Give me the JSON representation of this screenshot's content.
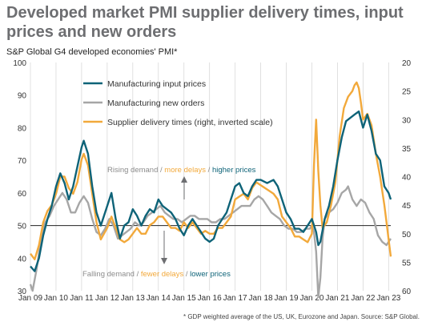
{
  "title": "Developed market PMI supplier delivery times, input prices and new orders",
  "subtitle": "S&P Global G4 developed economies' PMI*",
  "footnote": "* GDP weighted average of the US, UK, Eurozone and Japan. Source: S&P Global.",
  "colors": {
    "input": "#0e6378",
    "orders": "#a6a6a6",
    "delivery": "#f2a93b",
    "grid": "#d9d9d9",
    "ref": "#222222"
  },
  "annotations": {
    "rising": {
      "a": "Rising demand / ",
      "b": "more delays",
      "c": " / ",
      "d": "higher prices"
    },
    "falling": {
      "a": "Falling demand / ",
      "b": "fewer delays",
      "c": " / ",
      "d": "lower prices"
    }
  },
  "chart_data": {
    "type": "line",
    "x_range": [
      "2009-01",
      "2023-02"
    ],
    "x_ticks": [
      "Jan 09",
      "Jan 10",
      "Jan 11",
      "Jan 12",
      "Jan 13",
      "Jan 14",
      "Jan 15",
      "Jan 16",
      "Jan 17",
      "Jan 18",
      "Jan 19",
      "Jan 20",
      "Jan 21",
      "Jan 22",
      "Jan 23"
    ],
    "y_left": {
      "min": 30,
      "max": 100,
      "ticks": [
        30,
        40,
        50,
        60,
        70,
        80,
        90,
        100
      ]
    },
    "y_right": {
      "min": 20,
      "max": 60,
      "inverted": true,
      "ticks": [
        20,
        25,
        30,
        35,
        40,
        45,
        50,
        55,
        60
      ]
    },
    "reference_line": 50,
    "grid": "vertical",
    "legend_position": "top-left",
    "series": [
      {
        "name": "Manufacturing input prices",
        "axis": "left",
        "color": "#0e6378",
        "points": [
          [
            "2009-01",
            37.5
          ],
          [
            "2009-03",
            36
          ],
          [
            "2009-05",
            40
          ],
          [
            "2009-07",
            47
          ],
          [
            "2009-09",
            52
          ],
          [
            "2009-11",
            56
          ],
          [
            "2010-01",
            62
          ],
          [
            "2010-03",
            66
          ],
          [
            "2010-05",
            63
          ],
          [
            "2010-07",
            58
          ],
          [
            "2010-09",
            62
          ],
          [
            "2010-11",
            68
          ],
          [
            "2011-01",
            74
          ],
          [
            "2011-02",
            76
          ],
          [
            "2011-04",
            72
          ],
          [
            "2011-06",
            62
          ],
          [
            "2011-08",
            54
          ],
          [
            "2011-10",
            50
          ],
          [
            "2012-01",
            56
          ],
          [
            "2012-03",
            60
          ],
          [
            "2012-05",
            52
          ],
          [
            "2012-07",
            46
          ],
          [
            "2012-09",
            50
          ],
          [
            "2012-11",
            51
          ],
          [
            "2013-01",
            55
          ],
          [
            "2013-03",
            53
          ],
          [
            "2013-05",
            50
          ],
          [
            "2013-07",
            53
          ],
          [
            "2013-09",
            55
          ],
          [
            "2013-11",
            54
          ],
          [
            "2014-01",
            58
          ],
          [
            "2014-03",
            56
          ],
          [
            "2014-05",
            55
          ],
          [
            "2014-07",
            54
          ],
          [
            "2014-09",
            52
          ],
          [
            "2014-11",
            49
          ],
          [
            "2015-01",
            47
          ],
          [
            "2015-03",
            50
          ],
          [
            "2015-05",
            52
          ],
          [
            "2015-07",
            50
          ],
          [
            "2015-09",
            48
          ],
          [
            "2015-11",
            46
          ],
          [
            "2016-01",
            45
          ],
          [
            "2016-03",
            46
          ],
          [
            "2016-05",
            50
          ],
          [
            "2016-07",
            52
          ],
          [
            "2016-09",
            54
          ],
          [
            "2016-11",
            58
          ],
          [
            "2017-01",
            62
          ],
          [
            "2017-03",
            63
          ],
          [
            "2017-05",
            60
          ],
          [
            "2017-07",
            59
          ],
          [
            "2017-09",
            62
          ],
          [
            "2017-11",
            64
          ],
          [
            "2018-01",
            64
          ],
          [
            "2018-04",
            63
          ],
          [
            "2018-07",
            64
          ],
          [
            "2018-09",
            62
          ],
          [
            "2018-11",
            58
          ],
          [
            "2019-01",
            54
          ],
          [
            "2019-03",
            52
          ],
          [
            "2019-05",
            49
          ],
          [
            "2019-07",
            49
          ],
          [
            "2019-09",
            48
          ],
          [
            "2019-11",
            50
          ],
          [
            "2020-01",
            52
          ],
          [
            "2020-03",
            48
          ],
          [
            "2020-04",
            44
          ],
          [
            "2020-05",
            45
          ],
          [
            "2020-07",
            52
          ],
          [
            "2020-09",
            56
          ],
          [
            "2020-11",
            62
          ],
          [
            "2021-01",
            70
          ],
          [
            "2021-03",
            77
          ],
          [
            "2021-05",
            82
          ],
          [
            "2021-07",
            83
          ],
          [
            "2021-09",
            84
          ],
          [
            "2021-11",
            85
          ],
          [
            "2022-01",
            80
          ],
          [
            "2022-03",
            84
          ],
          [
            "2022-05",
            79
          ],
          [
            "2022-07",
            72
          ],
          [
            "2022-09",
            70
          ],
          [
            "2022-11",
            62
          ],
          [
            "2023-01",
            60
          ],
          [
            "2023-02",
            58
          ]
        ]
      },
      {
        "name": "Manufacturing new orders",
        "axis": "left",
        "color": "#a6a6a6",
        "points": [
          [
            "2009-01",
            32
          ],
          [
            "2009-02",
            30
          ],
          [
            "2009-04",
            37
          ],
          [
            "2009-06",
            46
          ],
          [
            "2009-08",
            51
          ],
          [
            "2009-10",
            53
          ],
          [
            "2009-12",
            56
          ],
          [
            "2010-02",
            58
          ],
          [
            "2010-04",
            60
          ],
          [
            "2010-06",
            58
          ],
          [
            "2010-08",
            54
          ],
          [
            "2010-10",
            54
          ],
          [
            "2010-12",
            57
          ],
          [
            "2011-02",
            59
          ],
          [
            "2011-04",
            57
          ],
          [
            "2011-06",
            52
          ],
          [
            "2011-08",
            48
          ],
          [
            "2011-10",
            47
          ],
          [
            "2011-12",
            49
          ],
          [
            "2012-02",
            52
          ],
          [
            "2012-04",
            50
          ],
          [
            "2012-06",
            46
          ],
          [
            "2012-08",
            47
          ],
          [
            "2012-10",
            48
          ],
          [
            "2012-12",
            49
          ],
          [
            "2013-02",
            51
          ],
          [
            "2013-04",
            50
          ],
          [
            "2013-06",
            51
          ],
          [
            "2013-08",
            53
          ],
          [
            "2013-10",
            54
          ],
          [
            "2013-12",
            55
          ],
          [
            "2014-02",
            56
          ],
          [
            "2014-04",
            54
          ],
          [
            "2014-06",
            53
          ],
          [
            "2014-08",
            52
          ],
          [
            "2014-10",
            52
          ],
          [
            "2014-12",
            51
          ],
          [
            "2015-02",
            52
          ],
          [
            "2015-04",
            53
          ],
          [
            "2015-06",
            53
          ],
          [
            "2015-08",
            52
          ],
          [
            "2015-10",
            52
          ],
          [
            "2015-12",
            52
          ],
          [
            "2016-02",
            51
          ],
          [
            "2016-04",
            51
          ],
          [
            "2016-06",
            52
          ],
          [
            "2016-08",
            52
          ],
          [
            "2016-10",
            53
          ],
          [
            "2016-12",
            54
          ],
          [
            "2017-02",
            55
          ],
          [
            "2017-04",
            56
          ],
          [
            "2017-06",
            56
          ],
          [
            "2017-08",
            56
          ],
          [
            "2017-10",
            58
          ],
          [
            "2017-12",
            59
          ],
          [
            "2018-02",
            58
          ],
          [
            "2018-04",
            56
          ],
          [
            "2018-06",
            54
          ],
          [
            "2018-08",
            53
          ],
          [
            "2018-10",
            52
          ],
          [
            "2018-12",
            50
          ],
          [
            "2019-02",
            49
          ],
          [
            "2019-04",
            49
          ],
          [
            "2019-06",
            48
          ],
          [
            "2019-08",
            48
          ],
          [
            "2019-10",
            49
          ],
          [
            "2019-12",
            49
          ],
          [
            "2020-01",
            50
          ],
          [
            "2020-02",
            48
          ],
          [
            "2020-03",
            42
          ],
          [
            "2020-04",
            28
          ],
          [
            "2020-05",
            34
          ],
          [
            "2020-06",
            46
          ],
          [
            "2020-07",
            52
          ],
          [
            "2020-09",
            54
          ],
          [
            "2020-11",
            55
          ],
          [
            "2021-01",
            57
          ],
          [
            "2021-03",
            60
          ],
          [
            "2021-05",
            61
          ],
          [
            "2021-06",
            62
          ],
          [
            "2021-08",
            58
          ],
          [
            "2021-10",
            56
          ],
          [
            "2021-12",
            58
          ],
          [
            "2022-02",
            57
          ],
          [
            "2022-04",
            54
          ],
          [
            "2022-06",
            52
          ],
          [
            "2022-08",
            47
          ],
          [
            "2022-10",
            45
          ],
          [
            "2022-12",
            44
          ],
          [
            "2023-01",
            45
          ],
          [
            "2023-02",
            46
          ]
        ]
      },
      {
        "name": "Supplier delivery times (right, inverted scale)",
        "axis": "right",
        "color": "#f2a93b",
        "points": [
          [
            "2009-01",
            53.5
          ],
          [
            "2009-03",
            54.5
          ],
          [
            "2009-05",
            52
          ],
          [
            "2009-07",
            48
          ],
          [
            "2009-09",
            46
          ],
          [
            "2009-11",
            45
          ],
          [
            "2010-01",
            43
          ],
          [
            "2010-03",
            40
          ],
          [
            "2010-05",
            40
          ],
          [
            "2010-07",
            42
          ],
          [
            "2010-09",
            43
          ],
          [
            "2010-11",
            41
          ],
          [
            "2011-01",
            37
          ],
          [
            "2011-02",
            36
          ],
          [
            "2011-04",
            38
          ],
          [
            "2011-06",
            43
          ],
          [
            "2011-08",
            48
          ],
          [
            "2011-10",
            51
          ],
          [
            "2012-01",
            49
          ],
          [
            "2012-03",
            47
          ],
          [
            "2012-05",
            49
          ],
          [
            "2012-07",
            51
          ],
          [
            "2012-09",
            51.5
          ],
          [
            "2012-11",
            51
          ],
          [
            "2013-01",
            50
          ],
          [
            "2013-03",
            49
          ],
          [
            "2013-05",
            50
          ],
          [
            "2013-07",
            50
          ],
          [
            "2013-09",
            48.5
          ],
          [
            "2013-11",
            48
          ],
          [
            "2014-01",
            47
          ],
          [
            "2014-03",
            47
          ],
          [
            "2014-05",
            48
          ],
          [
            "2014-07",
            49
          ],
          [
            "2014-09",
            49
          ],
          [
            "2014-11",
            49.5
          ],
          [
            "2015-01",
            48
          ],
          [
            "2015-03",
            49
          ],
          [
            "2015-05",
            48
          ],
          [
            "2015-07",
            49
          ],
          [
            "2015-09",
            50
          ],
          [
            "2015-11",
            49.5
          ],
          [
            "2016-01",
            50
          ],
          [
            "2016-03",
            50
          ],
          [
            "2016-05",
            49
          ],
          [
            "2016-07",
            49
          ],
          [
            "2016-09",
            48
          ],
          [
            "2016-11",
            47
          ],
          [
            "2017-01",
            44
          ],
          [
            "2017-03",
            43.5
          ],
          [
            "2017-05",
            43
          ],
          [
            "2017-07",
            44
          ],
          [
            "2017-09",
            42
          ],
          [
            "2017-11",
            41
          ],
          [
            "2018-01",
            41.5
          ],
          [
            "2018-03",
            42
          ],
          [
            "2018-05",
            42.5
          ],
          [
            "2018-07",
            43
          ],
          [
            "2018-09",
            44
          ],
          [
            "2018-11",
            47
          ],
          [
            "2019-01",
            48
          ],
          [
            "2019-03",
            49
          ],
          [
            "2019-05",
            50.5
          ],
          [
            "2019-07",
            50.5
          ],
          [
            "2019-09",
            51
          ],
          [
            "2019-11",
            51.5
          ],
          [
            "2020-01",
            50
          ],
          [
            "2020-02",
            38
          ],
          [
            "2020-03",
            30
          ],
          [
            "2020-04",
            39
          ],
          [
            "2020-05",
            45
          ],
          [
            "2020-06",
            49
          ],
          [
            "2020-08",
            48
          ],
          [
            "2020-10",
            45
          ],
          [
            "2020-12",
            41
          ],
          [
            "2021-02",
            33
          ],
          [
            "2021-04",
            28
          ],
          [
            "2021-06",
            26
          ],
          [
            "2021-08",
            25
          ],
          [
            "2021-09",
            24
          ],
          [
            "2021-10",
            23.5
          ],
          [
            "2021-11",
            24.5
          ],
          [
            "2021-12",
            27
          ],
          [
            "2022-01",
            30
          ],
          [
            "2022-03",
            29
          ],
          [
            "2022-05",
            31
          ],
          [
            "2022-07",
            36
          ],
          [
            "2022-09",
            40
          ],
          [
            "2022-11",
            45
          ],
          [
            "2022-12",
            48
          ],
          [
            "2023-01",
            51
          ],
          [
            "2023-02",
            54
          ]
        ]
      }
    ]
  }
}
